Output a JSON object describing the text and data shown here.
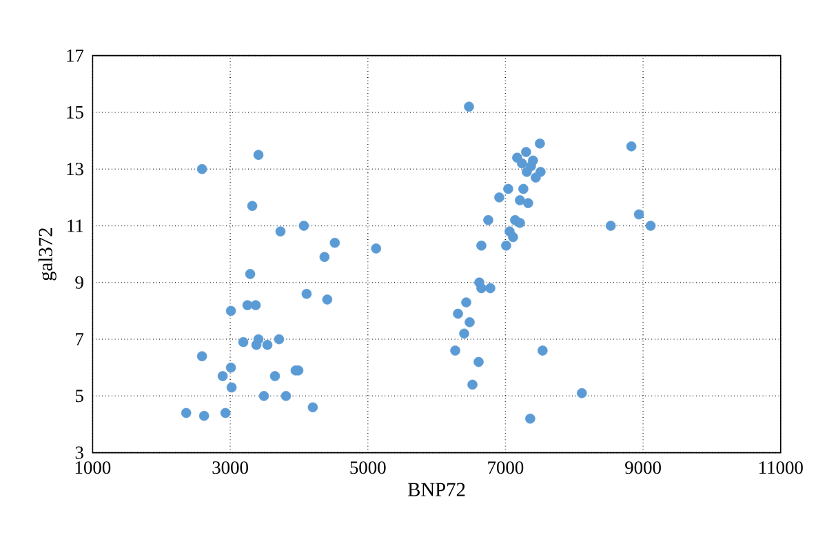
{
  "chart_data": {
    "type": "scatter",
    "xlabel": "BNP72",
    "ylabel": "gal372",
    "xlim": [
      1000,
      11000
    ],
    "xticks": [
      1000,
      3000,
      5000,
      7000,
      9000,
      11000
    ],
    "ylim": [
      3,
      17
    ],
    "yticks": [
      3,
      5,
      7,
      9,
      11,
      13,
      15,
      17
    ],
    "grid": true,
    "marker": "circle",
    "line_style": "none",
    "series": [
      {
        "color": "#5b9bd5",
        "x": [
          2590,
          3410,
          3320,
          3730,
          4070,
          4520,
          4370,
          5120,
          3290,
          4110,
          4410,
          3010,
          3250,
          3370,
          3190,
          3410,
          3380,
          3540,
          3710,
          2590,
          3010,
          2890,
          3020,
          3650,
          3950,
          3990,
          3490,
          3810,
          4200,
          2360,
          2620,
          2930,
          6470,
          7500,
          8830,
          7170,
          7300,
          7240,
          7370,
          7310,
          7510,
          7440,
          7400,
          7040,
          6910,
          7260,
          7210,
          7330,
          6750,
          7140,
          7210,
          7060,
          7110,
          7010,
          6650,
          8530,
          8940,
          9110,
          6620,
          6780,
          6650,
          6430,
          6310,
          6480,
          6400,
          6270,
          7540,
          6610,
          6520,
          8110,
          7360
        ],
        "values": [
          13.0,
          13.5,
          11.7,
          10.8,
          11.0,
          10.4,
          9.9,
          10.2,
          9.3,
          8.6,
          8.4,
          8.0,
          8.2,
          8.2,
          6.9,
          7.0,
          6.8,
          6.8,
          7.0,
          6.4,
          6.0,
          5.7,
          5.3,
          5.7,
          5.9,
          5.9,
          5.0,
          5.0,
          4.6,
          4.4,
          4.3,
          4.4,
          15.2,
          13.9,
          13.8,
          13.4,
          13.6,
          13.2,
          13.1,
          12.9,
          12.9,
          12.7,
          13.3,
          12.3,
          12.0,
          12.3,
          11.9,
          11.8,
          11.2,
          11.2,
          11.1,
          10.8,
          10.6,
          10.3,
          10.3,
          11.0,
          11.4,
          11.0,
          9.0,
          8.8,
          8.8,
          8.3,
          7.9,
          7.6,
          7.2,
          6.6,
          6.6,
          6.2,
          5.4,
          5.1,
          4.2
        ]
      }
    ]
  }
}
